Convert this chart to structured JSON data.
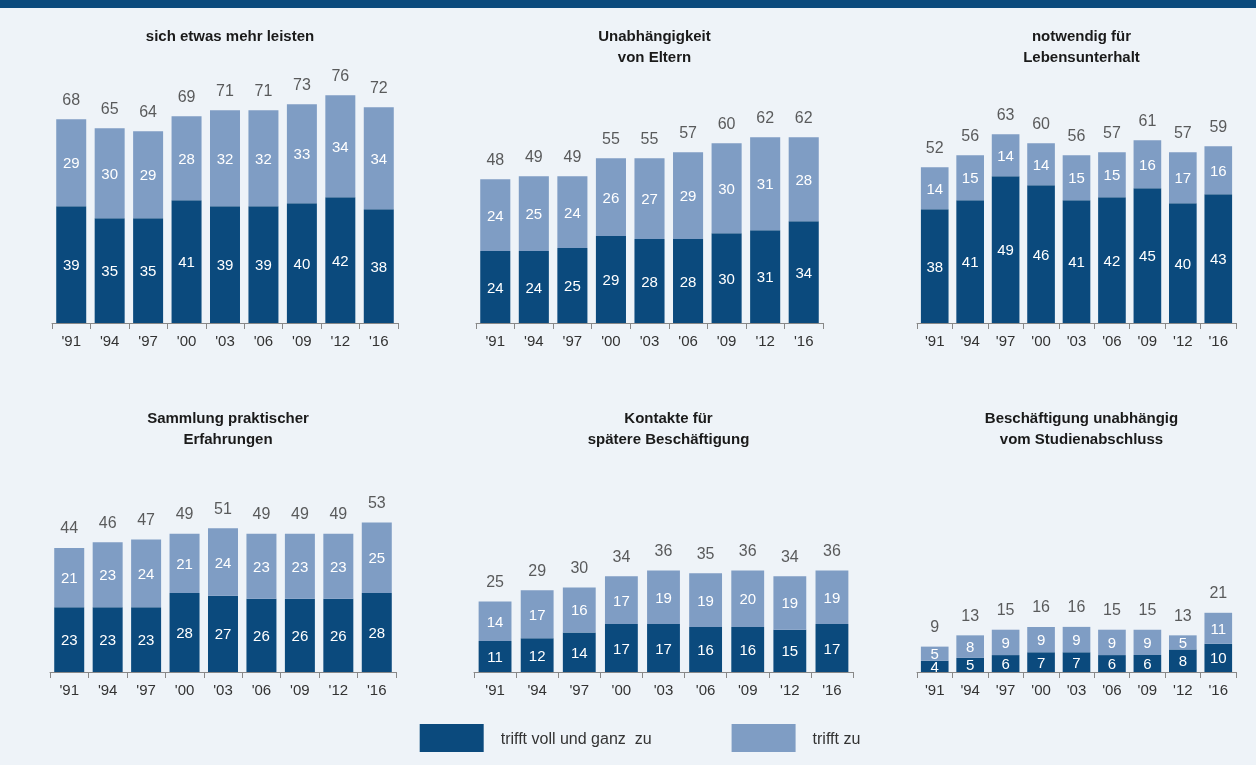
{
  "chart_data": [
    {
      "type": "bar",
      "title": "sich etwas mehr leisten",
      "stacked": true,
      "data_labels": true,
      "grid": false,
      "legend": false,
      "categories": [
        "'91",
        "'94",
        "'97",
        "'00",
        "'03",
        "'06",
        "'09",
        "'12",
        "'16"
      ],
      "series": [
        {
          "color": "#0b4a7d",
          "values": [
            39,
            35,
            35,
            41,
            39,
            39,
            40,
            42,
            38
          ]
        },
        {
          "color": "#7f9dc4",
          "values": [
            29,
            30,
            29,
            28,
            32,
            32,
            33,
            34,
            34
          ]
        }
      ],
      "totals": [
        "68",
        "65",
        "64",
        "69",
        "71",
        "71",
        "73",
        "76",
        "72"
      ]
    },
    {
      "type": "bar",
      "title": "Unabhängigkeit\nvon Eltern",
      "stacked": true,
      "data_labels": true,
      "grid": false,
      "legend": false,
      "categories": [
        "'91",
        "'94",
        "'97",
        "'00",
        "'03",
        "'06",
        "'09",
        "'12",
        "'16"
      ],
      "series": [
        {
          "color": "#0b4a7d",
          "values": [
            24,
            24,
            25,
            29,
            28,
            28,
            30,
            31,
            34
          ]
        },
        {
          "color": "#7f9dc4",
          "values": [
            24,
            25,
            24,
            26,
            27,
            29,
            30,
            31,
            28
          ]
        }
      ],
      "totals": [
        "48",
        "49",
        "49",
        "55",
        "55",
        "57",
        "60",
        "62",
        "62"
      ]
    },
    {
      "type": "bar",
      "title": "notwendig für\nLebensunterhalt",
      "stacked": true,
      "data_labels": true,
      "grid": false,
      "legend": false,
      "categories": [
        "'91",
        "'94",
        "'97",
        "'00",
        "'03",
        "'06",
        "'09",
        "'12",
        "'16"
      ],
      "series": [
        {
          "color": "#0b4a7d",
          "values": [
            38,
            41,
            49,
            46,
            41,
            42,
            45,
            40,
            43
          ]
        },
        {
          "color": "#7f9dc4",
          "values": [
            14,
            15,
            14,
            14,
            15,
            15,
            16,
            17,
            16
          ]
        }
      ],
      "totals": [
        "52",
        "56",
        "63",
        "60",
        "56",
        "57",
        "61",
        "57",
        "59"
      ]
    },
    {
      "type": "bar",
      "title": "Sammlung praktischer\nErfahrungen",
      "stacked": true,
      "data_labels": true,
      "grid": false,
      "legend": false,
      "categories": [
        "'91",
        "'94",
        "'97",
        "'00",
        "'03",
        "'06",
        "'09",
        "'12",
        "'16"
      ],
      "series": [
        {
          "color": "#0b4a7d",
          "values": [
            23,
            23,
            23,
            28,
            27,
            26,
            26,
            26,
            28
          ]
        },
        {
          "color": "#7f9dc4",
          "values": [
            21,
            23,
            24,
            21,
            24,
            23,
            23,
            23,
            25
          ]
        }
      ],
      "totals": [
        "44",
        "46",
        "47",
        "49",
        "51",
        "49",
        "49",
        "49",
        "53"
      ]
    },
    {
      "type": "bar",
      "title": "Kontakte für\nspätere Beschäftigung",
      "stacked": true,
      "data_labels": true,
      "grid": false,
      "legend": "bottom",
      "categories": [
        "'91",
        "'94",
        "'97",
        "'00",
        "'03",
        "'06",
        "'09",
        "'12",
        "'16"
      ],
      "series": [
        {
          "name": "trifft voll und ganz  zu",
          "color": "#0b4a7d",
          "values": [
            11,
            12,
            14,
            17,
            17,
            16,
            16,
            15,
            17
          ]
        },
        {
          "name": "trifft zu",
          "color": "#7f9dc4",
          "values": [
            14,
            17,
            16,
            17,
            19,
            19,
            20,
            19,
            19
          ]
        }
      ],
      "totals": [
        "25",
        "29",
        "30",
        "34",
        "36",
        "35",
        "36",
        "34",
        "36"
      ]
    },
    {
      "type": "bar",
      "title": "Beschäftigung unabhängig\nvom Studienabschluss",
      "stacked": true,
      "data_labels": true,
      "grid": false,
      "legend": false,
      "categories": [
        "'91",
        "'94",
        "'97",
        "'00",
        "'03",
        "'06",
        "'09",
        "'12",
        "'16"
      ],
      "series": [
        {
          "color": "#0b4a7d",
          "values": [
            4,
            5,
            6,
            7,
            7,
            6,
            6,
            8,
            10
          ]
        },
        {
          "color": "#7f9dc4",
          "values": [
            5,
            8,
            9,
            9,
            9,
            9,
            9,
            5,
            11
          ]
        }
      ],
      "totals": [
        "9",
        "13",
        "15",
        "16",
        "16",
        "15",
        "15",
        "13",
        "21"
      ]
    }
  ]
}
